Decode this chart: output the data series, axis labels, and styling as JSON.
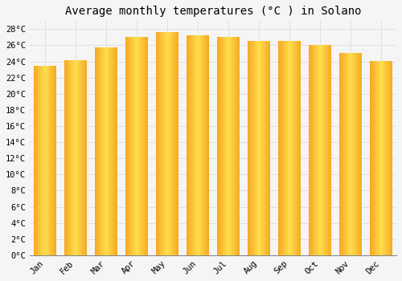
{
  "title": "Average monthly temperatures (°C ) in Solano",
  "months": [
    "Jan",
    "Feb",
    "Mar",
    "Apr",
    "May",
    "Jun",
    "Jul",
    "Aug",
    "Sep",
    "Oct",
    "Nov",
    "Dec"
  ],
  "values": [
    23.5,
    24.2,
    25.7,
    27.0,
    27.6,
    27.2,
    27.0,
    26.5,
    26.5,
    26.0,
    25.0,
    24.1
  ],
  "bar_color_left": "#F5A623",
  "bar_color_center": "#FFD54F",
  "bar_color_right": "#F5A623",
  "background_color": "#F5F5F5",
  "grid_color": "#DDDDDD",
  "ylim": [
    0,
    29
  ],
  "ytick_step": 2,
  "title_fontsize": 10,
  "tick_fontsize": 7.5,
  "font_family": "monospace"
}
